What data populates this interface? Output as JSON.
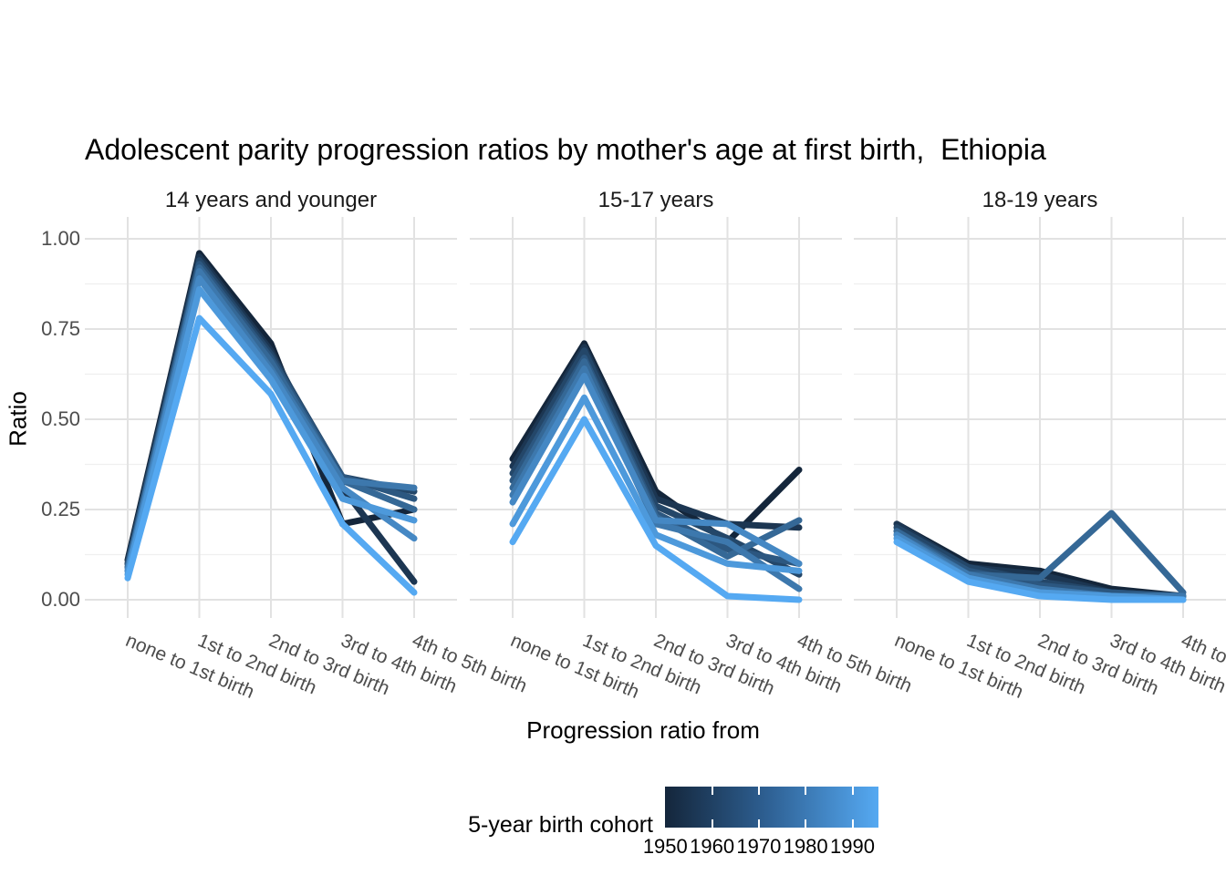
{
  "chart_data": {
    "type": "line",
    "title": "Adolescent parity progression ratios by mother's age at first birth,  Ethiopia",
    "xlabel": "Progression ratio from",
    "ylabel": "Ratio",
    "ylim": [
      0,
      1
    ],
    "yticks": [
      1.0,
      0.75,
      0.5,
      0.25,
      0.0
    ],
    "ytick_labels": [
      "1.00",
      "0.75",
      "0.50",
      "0.25",
      "0.00"
    ],
    "grid": "on",
    "categories": [
      "none to 1st birth",
      "1st to 2nd birth",
      "2nd to 3rd birth",
      "3rd to 4th birth",
      "4th to 5th birth"
    ],
    "legend": {
      "title": "5-year birth cohort",
      "style": "colorbar-gradient",
      "position": "bottom",
      "ticks": [
        "1950",
        "1960",
        "1970",
        "1980",
        "1990"
      ],
      "tick_years": [
        1950,
        1960,
        1970,
        1980,
        1990
      ],
      "domain": [
        1950,
        1995.6
      ],
      "gradient": {
        "dark": "#14263b",
        "mid": "#2e6093",
        "light": "#55a9f2"
      }
    },
    "facets": [
      {
        "label": "14 years and younger",
        "series": [
          {
            "name": "1950",
            "color": "#14263b",
            "values": [
              0.11,
              0.96,
              0.71,
              0.21,
              0.25
            ]
          },
          {
            "name": "1955",
            "color": "#1c3652",
            "values": [
              0.1,
              0.95,
              0.69,
              0.31,
              0.05
            ]
          },
          {
            "name": "1960",
            "color": "#244769",
            "values": [
              0.1,
              0.94,
              0.68,
              0.34,
              0.3
            ]
          },
          {
            "name": "1965",
            "color": "#2c5780",
            "values": [
              0.09,
              0.93,
              0.67,
              0.34,
              0.28
            ]
          },
          {
            "name": "1970",
            "color": "#356896",
            "values": [
              0.09,
              0.92,
              0.66,
              0.33,
              0.25
            ]
          },
          {
            "name": "1975",
            "color": "#3d78ad",
            "values": [
              0.08,
              0.91,
              0.64,
              0.33,
              0.31
            ]
          },
          {
            "name": "1980",
            "color": "#4588c4",
            "values": [
              0.08,
              0.89,
              0.63,
              0.31,
              0.17
            ]
          },
          {
            "name": "1985",
            "color": "#4d99db",
            "values": [
              0.07,
              0.86,
              0.61,
              0.28,
              0.22
            ]
          },
          {
            "name": "1990",
            "color": "#55a9f2",
            "values": [
              0.06,
              0.78,
              0.57,
              0.21,
              0.02
            ]
          }
        ]
      },
      {
        "label": "15-17 years",
        "series": [
          {
            "name": "1950",
            "color": "#14263b",
            "values": [
              0.39,
              0.71,
              0.3,
              0.16,
              0.36
            ]
          },
          {
            "name": "1955",
            "color": "#1c3652",
            "values": [
              0.37,
              0.7,
              0.28,
              0.21,
              0.2
            ]
          },
          {
            "name": "1960",
            "color": "#244769",
            "values": [
              0.35,
              0.69,
              0.26,
              0.17,
              0.07
            ]
          },
          {
            "name": "1965",
            "color": "#2c5780",
            "values": [
              0.33,
              0.67,
              0.24,
              0.14,
              0.1
            ]
          },
          {
            "name": "1970",
            "color": "#356896",
            "values": [
              0.31,
              0.66,
              0.23,
              0.12,
              0.22
            ]
          },
          {
            "name": "1975",
            "color": "#3d78ad",
            "values": [
              0.29,
              0.64,
              0.21,
              0.16,
              0.03
            ]
          },
          {
            "name": "1980",
            "color": "#4588c4",
            "values": [
              0.27,
              0.62,
              0.22,
              0.21,
              0.1
            ]
          },
          {
            "name": "1985",
            "color": "#4d99db",
            "values": [
              0.21,
              0.56,
              0.18,
              0.1,
              0.08
            ]
          },
          {
            "name": "1990",
            "color": "#55a9f2",
            "values": [
              0.16,
              0.5,
              0.15,
              0.01,
              0.0
            ]
          }
        ]
      },
      {
        "label": "18-19 years",
        "series": [
          {
            "name": "1950",
            "color": "#14263b",
            "values": [
              0.21,
              0.1,
              0.08,
              0.03,
              0.01
            ]
          },
          {
            "name": "1955",
            "color": "#1c3652",
            "values": [
              0.21,
              0.09,
              0.07,
              0.02,
              0.01
            ]
          },
          {
            "name": "1960",
            "color": "#244769",
            "values": [
              0.2,
              0.09,
              0.05,
              0.02,
              0.01
            ]
          },
          {
            "name": "1965",
            "color": "#2c5780",
            "values": [
              0.19,
              0.08,
              0.04,
              0.02,
              0.01
            ]
          },
          {
            "name": "1970",
            "color": "#356896",
            "values": [
              0.19,
              0.07,
              0.06,
              0.24,
              0.02
            ]
          },
          {
            "name": "1975",
            "color": "#3d78ad",
            "values": [
              0.18,
              0.07,
              0.03,
              0.01,
              0.01
            ]
          },
          {
            "name": "1980",
            "color": "#4588c4",
            "values": [
              0.18,
              0.06,
              0.02,
              0.01,
              0.0
            ]
          },
          {
            "name": "1985",
            "color": "#4d99db",
            "values": [
              0.17,
              0.06,
              0.02,
              0.01,
              0.0
            ]
          },
          {
            "name": "1990",
            "color": "#55a9f2",
            "values": [
              0.16,
              0.05,
              0.01,
              0.0,
              0.0
            ]
          }
        ]
      }
    ]
  }
}
